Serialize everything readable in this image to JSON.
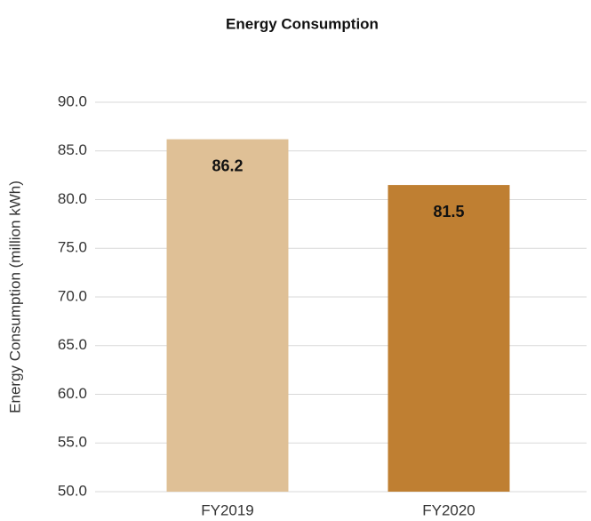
{
  "chart_data": {
    "type": "bar",
    "title": "Energy Consumption",
    "y_label": "Energy Consumption (million kWh)",
    "categories": [
      "FY2019",
      "FY2020"
    ],
    "values": [
      86.2,
      81.5
    ],
    "colors": [
      "#dfc096",
      "#bf7f32"
    ],
    "ylim": [
      50,
      90
    ],
    "yticks": [
      {
        "value": 50,
        "label": "50.0"
      },
      {
        "value": 55,
        "label": "55.0"
      },
      {
        "value": 60,
        "label": "60.0"
      },
      {
        "value": 65,
        "label": "65.0"
      },
      {
        "value": 70,
        "label": "70.0"
      },
      {
        "value": 75,
        "label": "75.0"
      },
      {
        "value": 80,
        "label": "80.0"
      },
      {
        "value": 85,
        "label": "85.0"
      },
      {
        "value": 90,
        "label": "90.0"
      }
    ],
    "grid": true
  }
}
